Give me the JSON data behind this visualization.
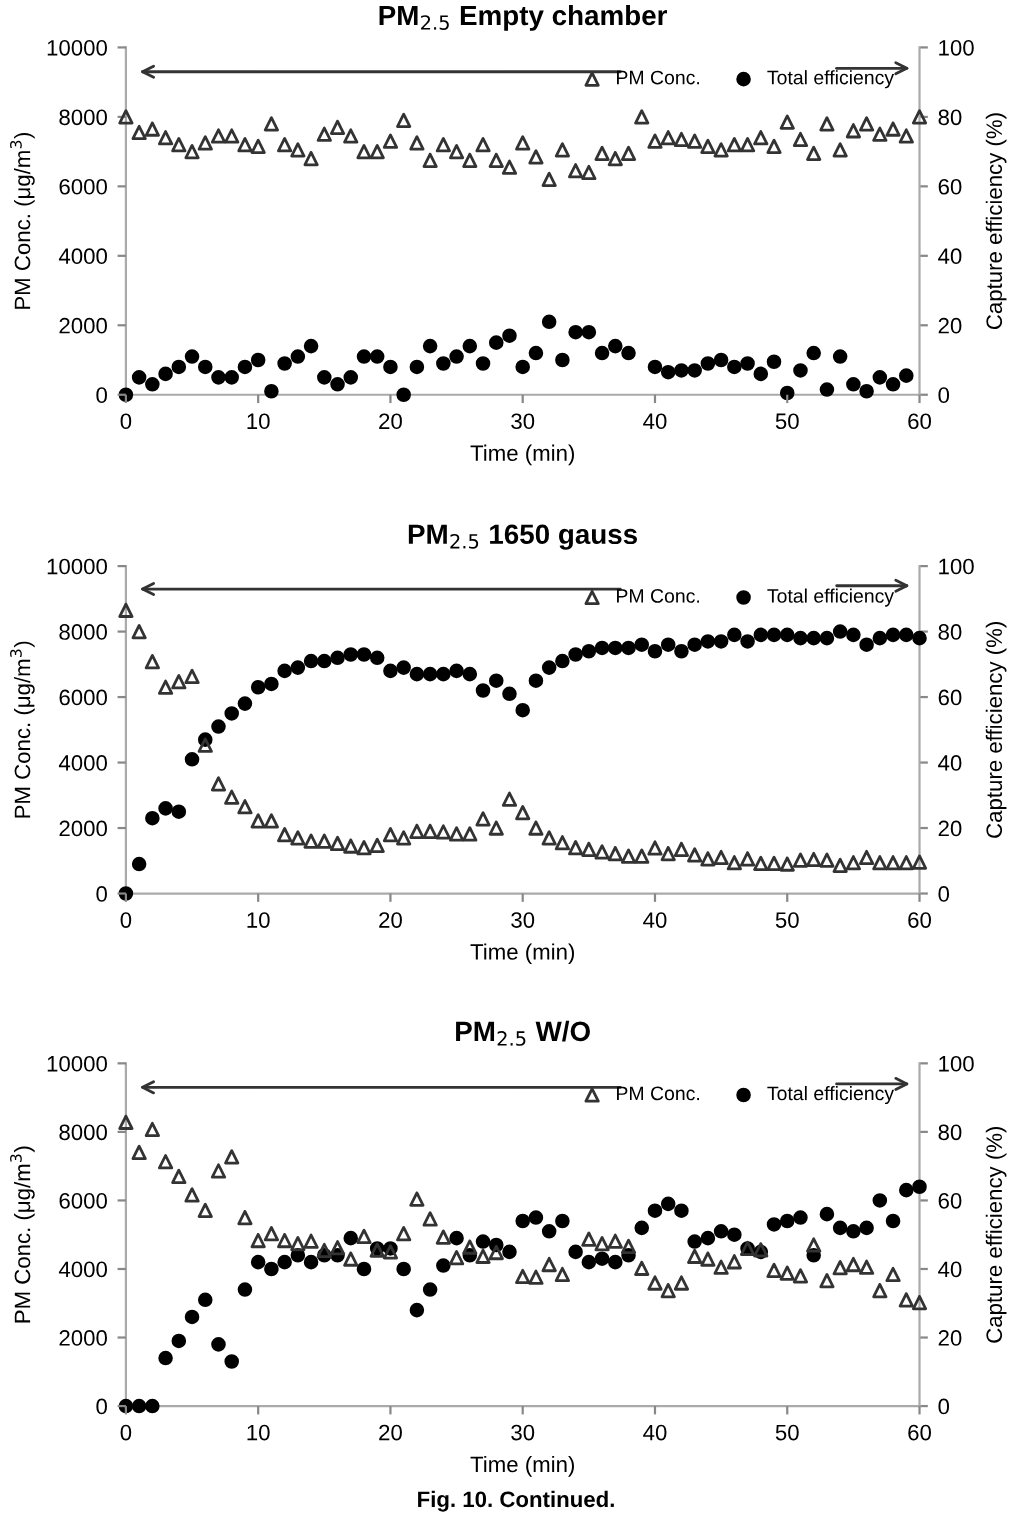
{
  "chart_data": [
    {
      "type": "scatter",
      "title": "PM$_{2.5}$ Empty chamber",
      "xlabel": "Time (min)",
      "ylabel": "PM Conc. (μg/m$^{3}$)",
      "y2label": "Capture efficiency (%)",
      "xlim": [
        0,
        60
      ],
      "xticks": [
        0,
        10,
        20,
        30,
        40,
        50,
        60
      ],
      "ylim": [
        0,
        10000
      ],
      "yticks": [
        0,
        2000,
        4000,
        6000,
        8000,
        10000
      ],
      "y2lim": [
        0,
        100
      ],
      "y2ticks": [
        0,
        20,
        40,
        60,
        80,
        100
      ],
      "grid": false,
      "legend": "top right",
      "series": [
        {
          "name": "PM Conc.",
          "color": "#333333",
          "marker": "triangle",
          "x": [
            0,
            1,
            2,
            3,
            4,
            5,
            6,
            7,
            8,
            9,
            10,
            11,
            12,
            13,
            14,
            15,
            16,
            17,
            18,
            19,
            20,
            21,
            22,
            23,
            24,
            25,
            26,
            27,
            28,
            29,
            30,
            31,
            32,
            33,
            34,
            35,
            36,
            37,
            38,
            39,
            40,
            41,
            42,
            43,
            44,
            45,
            46,
            47,
            48,
            49,
            50,
            51,
            52,
            53,
            54,
            55,
            56,
            57,
            58,
            59,
            60
          ],
          "values": [
            8000,
            7550,
            7650,
            7400,
            7200,
            7000,
            7250,
            7450,
            7450,
            7200,
            7150,
            7800,
            7200,
            7050,
            6800,
            7500,
            7700,
            7450,
            7000,
            7000,
            7300,
            7900,
            7250,
            6750,
            7200,
            7000,
            6750,
            7200,
            6750,
            6550,
            7250,
            6850,
            6200,
            7050,
            6450,
            6400,
            6950,
            6800,
            6950,
            8000,
            7300,
            7400,
            7350,
            7300,
            7150,
            7050,
            7200,
            7200,
            7400,
            7150,
            7850,
            7350,
            6950,
            7800,
            7050,
            7600,
            7800,
            7500,
            7650,
            7450,
            8000
          ]
        },
        {
          "name": "Total efficiency",
          "color": "#000000",
          "marker": "circle",
          "axis": "y2",
          "x": [
            0,
            1,
            2,
            3,
            4,
            5,
            6,
            7,
            8,
            9,
            10,
            11,
            12,
            13,
            14,
            15,
            16,
            17,
            18,
            19,
            20,
            21,
            22,
            23,
            24,
            25,
            26,
            27,
            28,
            29,
            30,
            31,
            32,
            33,
            34,
            35,
            36,
            37,
            38,
            40,
            41,
            42,
            43,
            44,
            45,
            46,
            47,
            48,
            49,
            50,
            51,
            52,
            53,
            54,
            55,
            56,
            57,
            58,
            59
          ],
          "values": [
            0,
            5,
            3,
            6,
            8,
            11,
            8,
            5,
            5,
            8,
            10,
            1,
            9,
            11,
            14,
            5,
            3,
            5,
            11,
            11,
            8,
            0,
            8,
            14,
            9,
            11,
            14,
            9,
            15,
            17,
            8,
            12,
            21,
            10,
            18,
            18,
            12,
            14,
            12,
            8,
            6.5,
            7,
            7,
            9,
            10,
            8,
            9,
            6,
            9.5,
            0.5,
            7,
            12,
            1.5,
            11,
            3,
            1,
            5,
            3,
            5.5
          ]
        }
      ]
    },
    {
      "type": "scatter",
      "title": "PM$_{2.5}$ 1650 gauss",
      "xlabel": "Time (min)",
      "ylabel": "PM Conc. (μg/m$^{3}$)",
      "y2label": "Capture efficiency (%)",
      "xlim": [
        0,
        60
      ],
      "xticks": [
        0,
        10,
        20,
        30,
        40,
        50,
        60
      ],
      "ylim": [
        0,
        10000
      ],
      "yticks": [
        0,
        2000,
        4000,
        6000,
        8000,
        10000
      ],
      "y2lim": [
        0,
        100
      ],
      "y2ticks": [
        0,
        20,
        40,
        60,
        80,
        100
      ],
      "grid": false,
      "legend": "top right",
      "series": [
        {
          "name": "PM Conc.",
          "color": "#333333",
          "marker": "triangle",
          "x": [
            0,
            1,
            2,
            3,
            4,
            5,
            6,
            7,
            8,
            9,
            10,
            11,
            12,
            13,
            14,
            15,
            16,
            17,
            18,
            19,
            20,
            21,
            22,
            23,
            24,
            25,
            26,
            27,
            28,
            29,
            30,
            31,
            32,
            33,
            34,
            35,
            36,
            37,
            38,
            39,
            40,
            41,
            42,
            43,
            44,
            45,
            46,
            47,
            48,
            49,
            50,
            51,
            52,
            53,
            54,
            55,
            56,
            57,
            58,
            59,
            60
          ],
          "values": [
            8650,
            8000,
            7080,
            6300,
            6470,
            6630,
            4530,
            3350,
            2940,
            2650,
            2220,
            2220,
            1800,
            1700,
            1600,
            1600,
            1530,
            1450,
            1400,
            1470,
            1800,
            1700,
            1900,
            1900,
            1880,
            1820,
            1820,
            2280,
            2000,
            2880,
            2470,
            2000,
            1700,
            1550,
            1400,
            1350,
            1270,
            1220,
            1140,
            1140,
            1390,
            1220,
            1350,
            1180,
            1060,
            1100,
            940,
            1060,
            920,
            920,
            900,
            1020,
            1040,
            1020,
            860,
            940,
            1100,
            940,
            940,
            940,
            960
          ]
        },
        {
          "name": "Total efficiency",
          "color": "#000000",
          "marker": "circle",
          "axis": "y2",
          "x": [
            0,
            1,
            2,
            3,
            4,
            5,
            6,
            7,
            8,
            9,
            10,
            11,
            12,
            13,
            14,
            15,
            16,
            17,
            18,
            19,
            20,
            21,
            22,
            23,
            24,
            25,
            26,
            27,
            28,
            29,
            30,
            31,
            32,
            33,
            34,
            35,
            36,
            37,
            38,
            39,
            40,
            41,
            42,
            43,
            44,
            45,
            46,
            47,
            48,
            49,
            50,
            51,
            52,
            53,
            54,
            55,
            56,
            57,
            58,
            59,
            60
          ],
          "values": [
            0,
            9,
            23,
            26,
            25,
            41,
            47,
            51,
            55,
            58,
            63,
            64,
            68,
            69,
            71,
            71,
            72,
            73,
            73,
            72,
            68,
            69,
            67,
            67,
            67,
            68,
            67,
            62,
            65,
            61,
            56,
            65,
            69,
            71,
            73,
            74,
            75,
            75,
            75,
            76,
            74,
            76,
            74,
            76,
            77,
            77,
            79,
            77,
            79,
            79,
            79,
            78,
            78,
            78,
            80,
            79,
            76,
            78,
            79,
            79,
            78
          ]
        }
      ]
    },
    {
      "type": "scatter",
      "title": "PM$_{2.5}$ W/O",
      "xlabel": "Time (min)",
      "ylabel": "PM Conc. (μg/m$^{3}$)",
      "y2label": "Capture efficiency (%)",
      "xlim": [
        0,
        60
      ],
      "xticks": [
        0,
        10,
        20,
        30,
        40,
        50,
        60
      ],
      "ylim": [
        0,
        10000
      ],
      "yticks": [
        0,
        2000,
        4000,
        6000,
        8000,
        10000
      ],
      "y2lim": [
        0,
        100
      ],
      "y2ticks": [
        0,
        20,
        40,
        60,
        80,
        100
      ],
      "grid": false,
      "legend": "top right",
      "annotations": [
        "Fig. 10. Continued."
      ],
      "series": [
        {
          "name": "PM Conc.",
          "color": "#333333",
          "marker": "triangle",
          "x": [
            0,
            1,
            2,
            3,
            4,
            5,
            6,
            7,
            8,
            9,
            10,
            11,
            12,
            13,
            14,
            15,
            16,
            17,
            18,
            19,
            20,
            21,
            22,
            23,
            24,
            25,
            26,
            27,
            28,
            30,
            31,
            32,
            33,
            35,
            36,
            37,
            38,
            39,
            40,
            41,
            42,
            43,
            44,
            45,
            46,
            47,
            48,
            49,
            50,
            51,
            52,
            53,
            54,
            55,
            56,
            57,
            58,
            59,
            60
          ],
          "values": [
            8280,
            7400,
            8070,
            7130,
            6700,
            6160,
            5710,
            6860,
            7270,
            5500,
            4830,
            5030,
            4830,
            4740,
            4810,
            4540,
            4620,
            4290,
            4950,
            4550,
            4500,
            5030,
            6040,
            5460,
            4930,
            4330,
            4640,
            4370,
            4480,
            3780,
            3760,
            4130,
            3840,
            4870,
            4740,
            4810,
            4660,
            4020,
            3590,
            3370,
            3590,
            4370,
            4290,
            4050,
            4210,
            4600,
            4560,
            3960,
            3880,
            3800,
            4700,
            3660,
            4040,
            4130,
            4050,
            3370,
            3840,
            3100,
            3020
          ]
        },
        {
          "name": "Total efficiency",
          "color": "#000000",
          "marker": "circle",
          "axis": "y2",
          "x": [
            0,
            1,
            2,
            3,
            4,
            5,
            6,
            7,
            8,
            9,
            10,
            11,
            12,
            13,
            14,
            15,
            16,
            17,
            18,
            19,
            20,
            21,
            22,
            23,
            24,
            25,
            26,
            27,
            28,
            29,
            30,
            31,
            32,
            33,
            34,
            35,
            36,
            37,
            38,
            39,
            40,
            41,
            42,
            43,
            44,
            45,
            46,
            47,
            48,
            49,
            50,
            51,
            52,
            53,
            54,
            55,
            56,
            57,
            58,
            59,
            60
          ],
          "values": [
            0,
            0,
            0,
            14,
            19,
            26,
            31,
            18,
            13,
            34,
            42,
            40,
            42,
            44,
            42,
            44,
            44,
            49,
            40,
            46,
            46,
            40,
            28,
            34,
            41,
            49,
            44,
            48,
            47,
            45,
            54,
            55,
            51,
            54,
            45,
            42,
            43,
            42,
            44,
            52,
            57,
            59,
            57,
            48,
            49,
            51,
            50,
            46,
            45,
            53,
            54,
            55,
            44,
            56,
            52,
            51,
            52,
            60,
            54,
            63,
            64
          ]
        }
      ]
    }
  ]
}
